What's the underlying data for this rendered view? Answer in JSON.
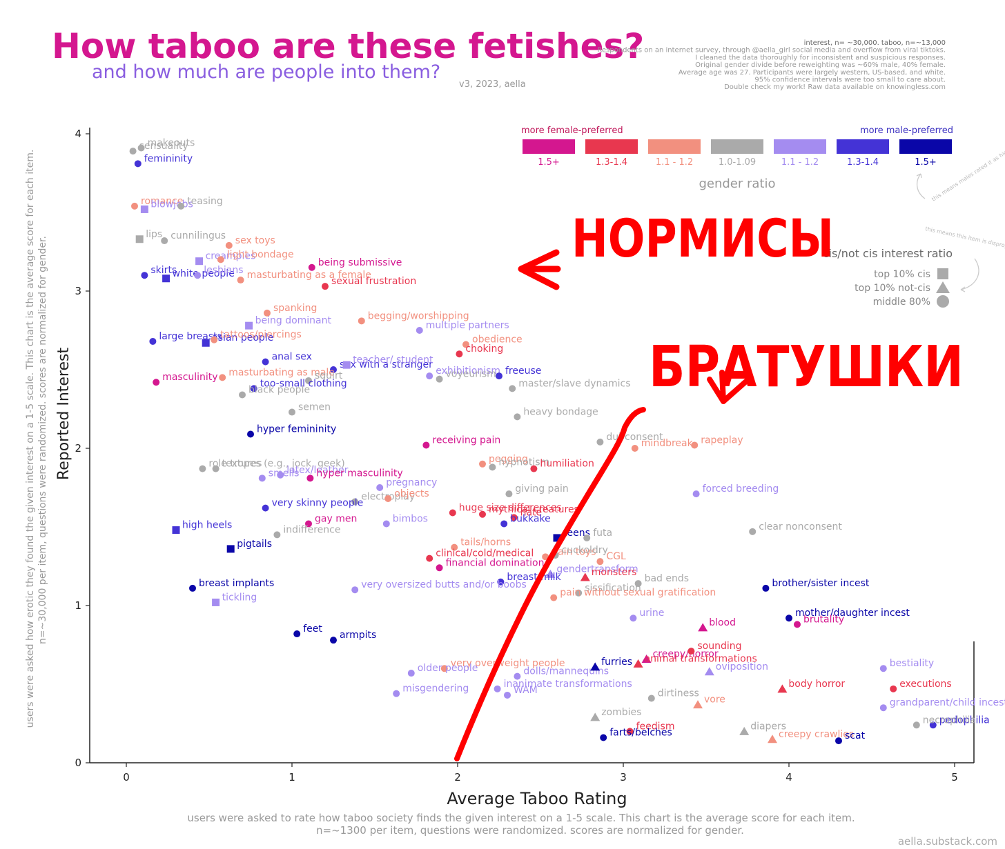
{
  "header": {
    "title": "How taboo are these fetishes?",
    "subtitle": "and how much are people into them?",
    "version": "v3, 2023, aella",
    "notes": [
      "interest, n= ~30,000. taboo, n=~13,000",
      "Respondents on an internet survey, through @aella_girl social media and overflow from viral tiktoks.",
      "I cleaned the data thoroughly for inconsistent and suspicious responses.",
      "Original gender divide before reweighting was ~60% male, 40% female.",
      "Average age was 27. Participants were largely western, US-based, and white.",
      "95% confidence intervals were too small to care about.",
      "Double check my work! Raw data available on knowingless.com"
    ]
  },
  "footer": {
    "x_desc_1": "users were asked to rate how taboo society finds the given interest on a 1-5 scale. This chart is the average score for each item.",
    "x_desc_2": "n=~1300 per item, questions were randomized. scores are normalized for gender.",
    "y_desc_1": "users were asked how erotic they found the given interest on a 1-5 scale. This chart is the average score for each item.",
    "y_desc_2": "n=~30,000 per item, questions were randomized. scores are normalized for gender.",
    "source": "aella.substack.com"
  },
  "legend": {
    "female_label": "more female-preferred",
    "male_label": "more male-preferred",
    "title": "gender ratio",
    "bins": [
      {
        "key": "f15",
        "label": "1.5+",
        "color": "#d4178f"
      },
      {
        "key": "f13",
        "label": "1.3-1.4",
        "color": "#e8374f"
      },
      {
        "key": "f11",
        "label": "1.1 - 1.2",
        "color": "#f2907f"
      },
      {
        "key": "n",
        "label": "1.0-1.09",
        "color": "#aaaaaa"
      },
      {
        "key": "m11",
        "label": "1.1 - 1.2",
        "color": "#a48cf0"
      },
      {
        "key": "m13",
        "label": "1.3-1.4",
        "color": "#4433d6"
      },
      {
        "key": "m15",
        "label": "1.5+",
        "color": "#0a06a8"
      }
    ],
    "ratio_note": "this means males rated it as high as females",
    "cis_title": "cis/not cis interest ratio",
    "cis_note": "this means this item is disproportionately preferred by non-cis people",
    "shapes": [
      {
        "shape": "square",
        "label": "top 10% cis"
      },
      {
        "shape": "triangle",
        "label": "top 10% not-cis"
      },
      {
        "shape": "circle",
        "label": "middle 80%"
      }
    ]
  },
  "annotations": {
    "normies": "НОРМИСЫ",
    "bros": "БРАТУШКИ"
  },
  "colors": {
    "f15": "#d4178f",
    "f13": "#e8374f",
    "f11": "#f2907f",
    "n": "#aaaaaa",
    "m11": "#a48cf0",
    "m13": "#4433d6",
    "m15": "#0a06a8",
    "title": "#d4178f",
    "subtitle": "#8a5ee0",
    "marker_red": "#ff0000"
  },
  "chart_data": {
    "type": "scatter",
    "title": "How taboo are these fetishes?",
    "xlabel": "Average Taboo Rating",
    "ylabel": "Reported Interest",
    "xlim": [
      0,
      5
    ],
    "ylim": [
      0,
      4
    ],
    "x_ticks": [
      0,
      1,
      2,
      3,
      4,
      5
    ],
    "y_ticks": [
      0,
      1,
      2,
      3,
      4
    ],
    "grid": false,
    "points": [
      {
        "label": "sensuality",
        "x": 0.04,
        "y": 3.89,
        "c": "n",
        "s": "circle"
      },
      {
        "label": "makeouts",
        "x": 0.09,
        "y": 3.91,
        "c": "n",
        "s": "circle"
      },
      {
        "label": "femininity",
        "x": 0.07,
        "y": 3.81,
        "c": "m13",
        "s": "circle"
      },
      {
        "label": "romance",
        "x": 0.05,
        "y": 3.54,
        "c": "f11",
        "s": "circle"
      },
      {
        "label": "blowjobs",
        "x": 0.11,
        "y": 3.52,
        "c": "m11",
        "s": "square"
      },
      {
        "label": "teasing",
        "x": 0.33,
        "y": 3.54,
        "c": "n",
        "s": "circle"
      },
      {
        "label": "lips",
        "x": 0.08,
        "y": 3.33,
        "c": "n",
        "s": "square"
      },
      {
        "label": "cunnilingus",
        "x": 0.23,
        "y": 3.32,
        "c": "n",
        "s": "circle"
      },
      {
        "label": "sex toys",
        "x": 0.62,
        "y": 3.29,
        "c": "f11",
        "s": "circle"
      },
      {
        "label": "creampies",
        "x": 0.44,
        "y": 3.19,
        "c": "m11",
        "s": "square"
      },
      {
        "label": "light bondage",
        "x": 0.57,
        "y": 3.2,
        "c": "f11",
        "s": "circle"
      },
      {
        "label": "being submissive",
        "x": 1.12,
        "y": 3.15,
        "c": "f15",
        "s": "circle"
      },
      {
        "label": "skirts",
        "x": 0.11,
        "y": 3.1,
        "c": "m13",
        "s": "circle"
      },
      {
        "label": "white people",
        "x": 0.24,
        "y": 3.08,
        "c": "m13",
        "s": "square"
      },
      {
        "label": "lesbians",
        "x": 0.43,
        "y": 3.1,
        "c": "m11",
        "s": "circle"
      },
      {
        "label": "masturbating as a female",
        "x": 0.69,
        "y": 3.07,
        "c": "f11",
        "s": "circle"
      },
      {
        "label": "sexual frustration",
        "x": 1.2,
        "y": 3.03,
        "c": "f13",
        "s": "circle"
      },
      {
        "label": "spanking",
        "x": 0.85,
        "y": 2.86,
        "c": "f11",
        "s": "circle"
      },
      {
        "label": "being dominant",
        "x": 0.74,
        "y": 2.78,
        "c": "m11",
        "s": "square"
      },
      {
        "label": "begging/worshipping",
        "x": 1.42,
        "y": 2.81,
        "c": "f11",
        "s": "circle"
      },
      {
        "label": "multiple partners",
        "x": 1.77,
        "y": 2.75,
        "c": "m11",
        "s": "circle"
      },
      {
        "label": "large breasts",
        "x": 0.16,
        "y": 2.68,
        "c": "m13",
        "s": "circle"
      },
      {
        "label": "asian people",
        "x": 0.48,
        "y": 2.67,
        "c": "m13",
        "s": "square"
      },
      {
        "label": "tattoos/piercings",
        "x": 0.53,
        "y": 2.69,
        "c": "f11",
        "s": "circle"
      },
      {
        "label": "obedience",
        "x": 2.05,
        "y": 2.66,
        "c": "f11",
        "s": "circle"
      },
      {
        "label": "choking",
        "x": 2.01,
        "y": 2.6,
        "c": "f13",
        "s": "circle"
      },
      {
        "label": "anal sex",
        "x": 0.84,
        "y": 2.55,
        "c": "m13",
        "s": "circle"
      },
      {
        "label": "sex with a stranger",
        "x": 1.25,
        "y": 2.5,
        "c": "m13",
        "s": "circle"
      },
      {
        "label": "teacher/ student",
        "x": 1.33,
        "y": 2.53,
        "c": "m11",
        "s": "square"
      },
      {
        "label": "masturbating as male",
        "x": 0.58,
        "y": 2.45,
        "c": "f11",
        "s": "circle"
      },
      {
        "label": "squirt",
        "x": 1.1,
        "y": 2.43,
        "c": "n",
        "s": "circle"
      },
      {
        "label": "exhibitionism",
        "x": 1.83,
        "y": 2.46,
        "c": "m11",
        "s": "circle"
      },
      {
        "label": "voyeurism",
        "x": 1.89,
        "y": 2.44,
        "c": "n",
        "s": "circle"
      },
      {
        "label": "freeuse",
        "x": 2.25,
        "y": 2.46,
        "c": "m13",
        "s": "circle"
      },
      {
        "label": "master/slave dynamics",
        "x": 2.33,
        "y": 2.38,
        "c": "n",
        "s": "circle"
      },
      {
        "label": "masculinity",
        "x": 0.18,
        "y": 2.42,
        "c": "f15",
        "s": "circle"
      },
      {
        "label": "too-small clothing",
        "x": 0.77,
        "y": 2.38,
        "c": "m13",
        "s": "circle"
      },
      {
        "label": "black people",
        "x": 0.7,
        "y": 2.34,
        "c": "n",
        "s": "circle"
      },
      {
        "label": "semen",
        "x": 1.0,
        "y": 2.23,
        "c": "n",
        "s": "circle"
      },
      {
        "label": "heavy bondage",
        "x": 2.36,
        "y": 2.2,
        "c": "n",
        "s": "circle"
      },
      {
        "label": "hyper femininity",
        "x": 0.75,
        "y": 2.09,
        "c": "m15",
        "s": "circle"
      },
      {
        "label": "receiving pain",
        "x": 1.81,
        "y": 2.02,
        "c": "f15",
        "s": "circle"
      },
      {
        "label": "dubconsent",
        "x": 2.86,
        "y": 2.04,
        "c": "n",
        "s": "circle"
      },
      {
        "label": "mindbreak",
        "x": 3.07,
        "y": 2.0,
        "c": "f11",
        "s": "circle"
      },
      {
        "label": "rapeplay",
        "x": 3.43,
        "y": 2.02,
        "c": "f11",
        "s": "circle"
      },
      {
        "label": "textures",
        "x": 0.54,
        "y": 1.87,
        "c": "n",
        "s": "circle"
      },
      {
        "label": "role tropes (e.g., jock, geek)",
        "x": 0.46,
        "y": 1.87,
        "c": "n",
        "s": "circle"
      },
      {
        "label": "latex/leather",
        "x": 0.93,
        "y": 1.83,
        "c": "m11",
        "s": "circle"
      },
      {
        "label": "smells",
        "x": 0.82,
        "y": 1.81,
        "c": "m11",
        "s": "circle"
      },
      {
        "label": "hyper masculinity",
        "x": 1.11,
        "y": 1.81,
        "c": "f15",
        "s": "circle"
      },
      {
        "label": "pegging",
        "x": 2.15,
        "y": 1.9,
        "c": "f11",
        "s": "circle"
      },
      {
        "label": "hypnotism",
        "x": 2.21,
        "y": 1.88,
        "c": "n",
        "s": "circle"
      },
      {
        "label": "humiliation",
        "x": 2.46,
        "y": 1.87,
        "c": "f13",
        "s": "circle"
      },
      {
        "label": "pregnancy",
        "x": 1.53,
        "y": 1.75,
        "c": "m11",
        "s": "circle"
      },
      {
        "label": "electroplay",
        "x": 1.38,
        "y": 1.66,
        "c": "n",
        "s": "circle"
      },
      {
        "label": "objects",
        "x": 1.58,
        "y": 1.68,
        "c": "f11",
        "s": "circle"
      },
      {
        "label": "giving pain",
        "x": 2.31,
        "y": 1.71,
        "c": "n",
        "s": "circle"
      },
      {
        "label": "forced breeding",
        "x": 3.44,
        "y": 1.71,
        "c": "m11",
        "s": "circle"
      },
      {
        "label": "very skinny people",
        "x": 0.84,
        "y": 1.62,
        "c": "m13",
        "s": "circle"
      },
      {
        "label": "gay men",
        "x": 1.1,
        "y": 1.52,
        "c": "f15",
        "s": "circle"
      },
      {
        "label": "mythical creatures",
        "x": 2.15,
        "y": 1.58,
        "c": "f13",
        "s": "circle"
      },
      {
        "label": "huge size differences",
        "x": 1.97,
        "y": 1.59,
        "c": "f13",
        "s": "circle"
      },
      {
        "label": "hate",
        "x": 2.34,
        "y": 1.56,
        "c": "f13",
        "s": "circle"
      },
      {
        "label": "bukkake",
        "x": 2.28,
        "y": 1.52,
        "c": "m13",
        "s": "circle"
      },
      {
        "label": "high heels",
        "x": 0.3,
        "y": 1.48,
        "c": "m13",
        "s": "square"
      },
      {
        "label": "bimbos",
        "x": 1.57,
        "y": 1.52,
        "c": "m11",
        "s": "circle"
      },
      {
        "label": "indifference",
        "x": 0.91,
        "y": 1.45,
        "c": "n",
        "s": "circle"
      },
      {
        "label": "teens",
        "x": 2.6,
        "y": 1.43,
        "c": "m15",
        "s": "square"
      },
      {
        "label": "futa",
        "x": 2.78,
        "y": 1.43,
        "c": "n",
        "s": "circle"
      },
      {
        "label": "clear nonconsent",
        "x": 3.78,
        "y": 1.47,
        "c": "n",
        "s": "circle"
      },
      {
        "label": "pigtails",
        "x": 0.63,
        "y": 1.36,
        "c": "m15",
        "s": "square"
      },
      {
        "label": "tails/horns",
        "x": 1.98,
        "y": 1.37,
        "c": "f11",
        "s": "circle"
      },
      {
        "label": "clinical/cold/medical",
        "x": 1.83,
        "y": 1.3,
        "c": "f13",
        "s": "circle"
      },
      {
        "label": "pain toys",
        "x": 2.53,
        "y": 1.31,
        "c": "f11",
        "s": "circle"
      },
      {
        "label": "cuckoldry",
        "x": 2.59,
        "y": 1.32,
        "c": "n",
        "s": "circle"
      },
      {
        "label": "CGL",
        "x": 2.86,
        "y": 1.28,
        "c": "f11",
        "s": "circle"
      },
      {
        "label": "financial domination",
        "x": 1.89,
        "y": 1.24,
        "c": "f15",
        "s": "circle"
      },
      {
        "label": "gendertransform",
        "x": 2.56,
        "y": 1.2,
        "c": "m11",
        "s": "triangle"
      },
      {
        "label": "monsters",
        "x": 2.77,
        "y": 1.18,
        "c": "f13",
        "s": "triangle"
      },
      {
        "label": "breast implants",
        "x": 0.4,
        "y": 1.11,
        "c": "m15",
        "s": "circle"
      },
      {
        "label": "breast milk",
        "x": 2.26,
        "y": 1.15,
        "c": "m13",
        "s": "circle"
      },
      {
        "label": "bad ends",
        "x": 3.09,
        "y": 1.14,
        "c": "n",
        "s": "circle"
      },
      {
        "label": "brother/sister incest",
        "x": 3.86,
        "y": 1.11,
        "c": "m15",
        "s": "circle"
      },
      {
        "label": "sissification",
        "x": 2.73,
        "y": 1.08,
        "c": "n",
        "s": "circle"
      },
      {
        "label": "pain without sexual gratification",
        "x": 2.58,
        "y": 1.05,
        "c": "f11",
        "s": "circle"
      },
      {
        "label": "very oversized butts and/or boobs",
        "x": 1.38,
        "y": 1.1,
        "c": "m11",
        "s": "circle"
      },
      {
        "label": "tickling",
        "x": 0.54,
        "y": 1.02,
        "c": "m11",
        "s": "square"
      },
      {
        "label": "urine",
        "x": 3.06,
        "y": 0.92,
        "c": "m11",
        "s": "circle"
      },
      {
        "label": "mother/daughter incest",
        "x": 4.0,
        "y": 0.92,
        "c": "m15",
        "s": "circle"
      },
      {
        "label": "brutality",
        "x": 4.05,
        "y": 0.88,
        "c": "f15",
        "s": "circle"
      },
      {
        "label": "blood",
        "x": 3.48,
        "y": 0.86,
        "c": "f15",
        "s": "triangle"
      },
      {
        "label": "feet",
        "x": 1.03,
        "y": 0.82,
        "c": "m15",
        "s": "circle"
      },
      {
        "label": "armpits",
        "x": 1.25,
        "y": 0.78,
        "c": "m15",
        "s": "circle"
      },
      {
        "label": "creepy/horror",
        "x": 3.14,
        "y": 0.66,
        "c": "f15",
        "s": "triangle"
      },
      {
        "label": "sounding",
        "x": 3.41,
        "y": 0.71,
        "c": "f13",
        "s": "circle"
      },
      {
        "label": "very overweight people",
        "x": 1.92,
        "y": 0.6,
        "c": "f11",
        "s": "circle"
      },
      {
        "label": "dolls/mannequins",
        "x": 2.36,
        "y": 0.55,
        "c": "m11",
        "s": "circle"
      },
      {
        "label": "furries",
        "x": 2.83,
        "y": 0.61,
        "c": "m15",
        "s": "triangle"
      },
      {
        "label": "animal transformations",
        "x": 3.09,
        "y": 0.63,
        "c": "f13",
        "s": "triangle"
      },
      {
        "label": "oviposition",
        "x": 3.52,
        "y": 0.58,
        "c": "m11",
        "s": "triangle"
      },
      {
        "label": "bestiality",
        "x": 4.57,
        "y": 0.6,
        "c": "m11",
        "s": "circle"
      },
      {
        "label": "older people",
        "x": 1.72,
        "y": 0.57,
        "c": "m11",
        "s": "circle"
      },
      {
        "label": "body horror",
        "x": 3.96,
        "y": 0.47,
        "c": "f13",
        "s": "triangle"
      },
      {
        "label": "executions",
        "x": 4.63,
        "y": 0.47,
        "c": "f13",
        "s": "circle"
      },
      {
        "label": "inanimate transformations",
        "x": 2.24,
        "y": 0.47,
        "c": "m11",
        "s": "circle"
      },
      {
        "label": "WAM",
        "x": 2.3,
        "y": 0.43,
        "c": "m11",
        "s": "circle"
      },
      {
        "label": "misgendering",
        "x": 1.63,
        "y": 0.44,
        "c": "m11",
        "s": "circle"
      },
      {
        "label": "dirtiness",
        "x": 3.17,
        "y": 0.41,
        "c": "n",
        "s": "circle"
      },
      {
        "label": "vore",
        "x": 3.45,
        "y": 0.37,
        "c": "f11",
        "s": "triangle"
      },
      {
        "label": "grandparent/child incest",
        "x": 4.57,
        "y": 0.35,
        "c": "m11",
        "s": "circle"
      },
      {
        "label": "zombies",
        "x": 2.83,
        "y": 0.29,
        "c": "n",
        "s": "triangle"
      },
      {
        "label": "feedism",
        "x": 3.04,
        "y": 0.2,
        "c": "f13",
        "s": "circle"
      },
      {
        "label": "diapers",
        "x": 3.73,
        "y": 0.2,
        "c": "n",
        "s": "triangle"
      },
      {
        "label": "pedophilia",
        "x": 4.87,
        "y": 0.24,
        "c": "m13",
        "s": "circle"
      },
      {
        "label": "necrophilia",
        "x": 4.77,
        "y": 0.24,
        "c": "n",
        "s": "circle"
      },
      {
        "label": "farts/belches",
        "x": 2.88,
        "y": 0.16,
        "c": "m15",
        "s": "circle"
      },
      {
        "label": "creepy crawlies",
        "x": 3.9,
        "y": 0.15,
        "c": "f11",
        "s": "triangle"
      },
      {
        "label": "scat",
        "x": 4.3,
        "y": 0.14,
        "c": "m15",
        "s": "circle"
      }
    ]
  }
}
